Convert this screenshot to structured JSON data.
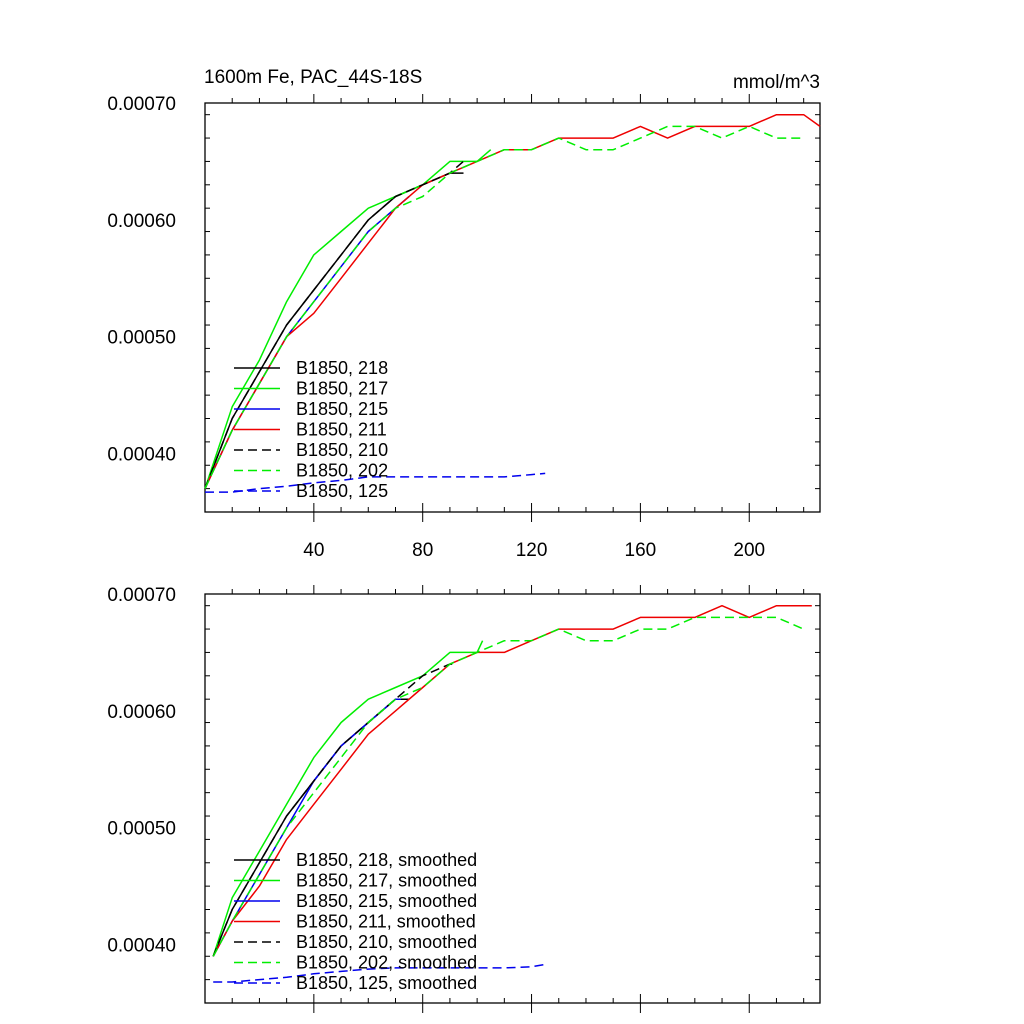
{
  "chart_data": [
    {
      "type": "line",
      "title": "1600m Fe, PAC_44S-18S",
      "units": "mmol/m^3",
      "xlabel": "",
      "ylabel": "",
      "xlim": [
        0,
        226
      ],
      "ylim": [
        0.00035,
        0.0007
      ],
      "x_ticks": [
        40,
        80,
        120,
        160,
        200
      ],
      "x_tick_labels": [
        "40",
        "80",
        "120",
        "160",
        "200"
      ],
      "y_ticks": [
        0.0004,
        0.0005,
        0.0006,
        0.0007
      ],
      "y_tick_labels": [
        "0.00040",
        "0.00050",
        "0.00060",
        "0.00070"
      ],
      "legend_position": "lower-left",
      "series": [
        {
          "name": "B1850, 218",
          "color": "#000000",
          "dash": "solid",
          "x": [
            0,
            10,
            20,
            30,
            40,
            50,
            60,
            70,
            80,
            90,
            95
          ],
          "values": [
            0.00037,
            0.00043,
            0.00047,
            0.00051,
            0.00054,
            0.00057,
            0.0006,
            0.00062,
            0.00063,
            0.00064,
            0.00064
          ]
        },
        {
          "name": "B1850, 217",
          "color": "#00ee00",
          "dash": "solid",
          "x": [
            0,
            10,
            20,
            30,
            40,
            50,
            60,
            70,
            80,
            90,
            100,
            105
          ],
          "values": [
            0.00037,
            0.00044,
            0.00048,
            0.00053,
            0.00057,
            0.00059,
            0.00061,
            0.00062,
            0.00063,
            0.00065,
            0.00065,
            0.00066
          ]
        },
        {
          "name": "B1850, 215",
          "color": "#0000ee",
          "dash": "solid",
          "x": [
            0,
            10,
            20,
            30,
            40,
            50,
            60,
            70,
            75
          ],
          "values": [
            0.00037,
            0.00042,
            0.00046,
            0.0005,
            0.00053,
            0.00056,
            0.00059,
            0.00061,
            0.00062
          ]
        },
        {
          "name": "B1850, 211",
          "color": "#ee0000",
          "dash": "solid",
          "x": [
            0,
            10,
            20,
            30,
            40,
            50,
            60,
            70,
            80,
            90,
            100,
            110,
            120,
            130,
            140,
            150,
            160,
            170,
            180,
            190,
            200,
            210,
            220,
            226
          ],
          "values": [
            0.00037,
            0.00042,
            0.00046,
            0.0005,
            0.00052,
            0.00055,
            0.00058,
            0.00061,
            0.00063,
            0.00064,
            0.00065,
            0.00066,
            0.00066,
            0.00067,
            0.00067,
            0.00067,
            0.00068,
            0.00067,
            0.00068,
            0.00068,
            0.00068,
            0.00069,
            0.00069,
            0.00068
          ]
        },
        {
          "name": "B1850, 210",
          "color": "#000000",
          "dash": "dashed",
          "x": [
            0,
            10,
            20,
            30,
            40,
            50,
            60,
            70,
            80,
            90,
            95
          ],
          "values": [
            0.00037,
            0.00043,
            0.00047,
            0.00051,
            0.00054,
            0.00057,
            0.0006,
            0.00062,
            0.00063,
            0.00064,
            0.00065
          ]
        },
        {
          "name": "B1850, 202",
          "color": "#00ee00",
          "dash": "dashed",
          "x": [
            0,
            10,
            20,
            30,
            40,
            50,
            60,
            70,
            80,
            90,
            100,
            110,
            120,
            130,
            140,
            150,
            160,
            170,
            180,
            190,
            200,
            210,
            220
          ],
          "values": [
            0.00037,
            0.00042,
            0.00046,
            0.0005,
            0.00053,
            0.00056,
            0.00059,
            0.00061,
            0.00062,
            0.00064,
            0.00065,
            0.00066,
            0.00066,
            0.00067,
            0.00066,
            0.00066,
            0.00067,
            0.00068,
            0.00068,
            0.00067,
            0.00068,
            0.00067,
            0.00067
          ]
        },
        {
          "name": "B1850, 125",
          "color": "#0000ee",
          "dash": "dashed",
          "x": [
            0,
            10,
            20,
            30,
            40,
            50,
            60,
            70,
            80,
            90,
            100,
            110,
            120,
            125
          ],
          "values": [
            0.000367,
            0.000367,
            0.00037,
            0.000372,
            0.000375,
            0.000377,
            0.00038,
            0.00038,
            0.00038,
            0.00038,
            0.00038,
            0.00038,
            0.000382,
            0.000383
          ]
        }
      ]
    },
    {
      "type": "line",
      "title": "",
      "xlabel": "",
      "ylabel": "",
      "xlim": [
        0,
        226
      ],
      "ylim": [
        0.00035,
        0.0007
      ],
      "x_ticks": [
        40,
        80,
        120,
        160,
        200
      ],
      "x_tick_labels": [],
      "y_ticks": [
        0.0004,
        0.0005,
        0.0006,
        0.0007
      ],
      "y_tick_labels": [
        "0.00040",
        "0.00050",
        "0.00060",
        "0.00070"
      ],
      "legend_position": "lower-left",
      "series": [
        {
          "name": "B1850, 218, smoothed",
          "color": "#000000",
          "dash": "solid",
          "x": [
            3,
            10,
            20,
            30,
            40,
            50,
            60,
            70,
            75
          ],
          "values": [
            0.00039,
            0.00043,
            0.00047,
            0.00051,
            0.00054,
            0.00057,
            0.00059,
            0.00061,
            0.00061
          ]
        },
        {
          "name": "B1850, 217, smoothed",
          "color": "#00ee00",
          "dash": "solid",
          "x": [
            3,
            10,
            20,
            30,
            40,
            50,
            60,
            70,
            80,
            90,
            100,
            102
          ],
          "values": [
            0.00039,
            0.00044,
            0.00048,
            0.00052,
            0.00056,
            0.00059,
            0.00061,
            0.00062,
            0.00063,
            0.00065,
            0.00065,
            0.00066
          ]
        },
        {
          "name": "B1850, 215, smoothed",
          "color": "#0000ee",
          "dash": "solid",
          "x": [
            3,
            10,
            20,
            30,
            40,
            50,
            60,
            70,
            72
          ],
          "values": [
            0.00039,
            0.00042,
            0.00046,
            0.0005,
            0.00054,
            0.00057,
            0.00059,
            0.00061,
            0.00061
          ]
        },
        {
          "name": "B1850, 211, smoothed",
          "color": "#ee0000",
          "dash": "solid",
          "x": [
            3,
            10,
            20,
            30,
            40,
            50,
            60,
            70,
            80,
            90,
            100,
            110,
            120,
            130,
            140,
            150,
            160,
            170,
            180,
            190,
            200,
            210,
            220,
            223
          ],
          "values": [
            0.00039,
            0.00042,
            0.00045,
            0.00049,
            0.00052,
            0.00055,
            0.00058,
            0.0006,
            0.00062,
            0.00064,
            0.00065,
            0.00065,
            0.00066,
            0.00067,
            0.00067,
            0.00067,
            0.00068,
            0.00068,
            0.00068,
            0.00069,
            0.00068,
            0.00069,
            0.00069,
            0.00069
          ]
        },
        {
          "name": "B1850, 210, smoothed",
          "color": "#000000",
          "dash": "dashed",
          "x": [
            3,
            10,
            20,
            30,
            40,
            50,
            60,
            70,
            80,
            90,
            92
          ],
          "values": [
            0.00039,
            0.00043,
            0.00047,
            0.00051,
            0.00054,
            0.00057,
            0.00059,
            0.00061,
            0.00063,
            0.00064,
            0.00064
          ]
        },
        {
          "name": "B1850, 202, smoothed",
          "color": "#00ee00",
          "dash": "dashed",
          "x": [
            3,
            10,
            20,
            30,
            40,
            50,
            60,
            70,
            80,
            90,
            100,
            110,
            120,
            130,
            140,
            150,
            160,
            170,
            180,
            190,
            200,
            210,
            220
          ],
          "values": [
            0.00039,
            0.00042,
            0.00046,
            0.0005,
            0.00053,
            0.00056,
            0.00059,
            0.00061,
            0.00062,
            0.00064,
            0.00065,
            0.00066,
            0.00066,
            0.00067,
            0.00066,
            0.00066,
            0.00067,
            0.00067,
            0.00068,
            0.00068,
            0.00068,
            0.00068,
            0.00067
          ]
        },
        {
          "name": "B1850, 125, smoothed",
          "color": "#0000ee",
          "dash": "dashed",
          "x": [
            3,
            10,
            20,
            30,
            40,
            50,
            60,
            70,
            80,
            90,
            100,
            110,
            120,
            125
          ],
          "values": [
            0.000368,
            0.000368,
            0.00037,
            0.000372,
            0.000375,
            0.000377,
            0.000379,
            0.00038,
            0.00038,
            0.00038,
            0.00038,
            0.00038,
            0.000381,
            0.000383
          ]
        }
      ]
    }
  ]
}
